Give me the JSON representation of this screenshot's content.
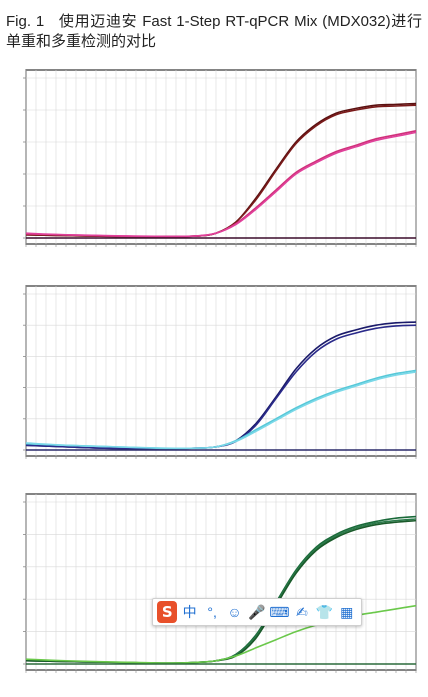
{
  "caption": {
    "fig_label": "Fig. 1",
    "text": "使用迈迪安 Fast 1-Step RT-qPCR Mix (MDX032)进行单重和多重检测的对比"
  },
  "ime_toolbar": {
    "items": [
      {
        "name": "sogou-logo-icon",
        "glyph": "S"
      },
      {
        "name": "chinese-mode-button",
        "glyph": "中"
      },
      {
        "name": "punctuation-button",
        "glyph": "°,"
      },
      {
        "name": "emoji-icon",
        "glyph": "☺"
      },
      {
        "name": "microphone-icon",
        "glyph": "🎤"
      },
      {
        "name": "keyboard-icon",
        "glyph": "⌨"
      },
      {
        "name": "handwriting-icon",
        "glyph": "✍"
      },
      {
        "name": "skin-shirt-icon",
        "glyph": "👕"
      },
      {
        "name": "toolbox-grid-icon",
        "glyph": "▦"
      }
    ]
  },
  "chart_data": [
    {
      "type": "line",
      "xlim": [
        1,
        40
      ],
      "ylim": [
        0,
        1
      ],
      "grid": true,
      "series": [
        {
          "color": "#5a1010",
          "x": [
            1,
            5,
            10,
            15,
            18,
            20,
            22,
            24,
            26,
            28,
            30,
            32,
            34,
            36,
            38,
            40
          ],
          "y": [
            0.02,
            0.015,
            0.01,
            0.01,
            0.012,
            0.03,
            0.1,
            0.25,
            0.43,
            0.6,
            0.71,
            0.78,
            0.81,
            0.83,
            0.835,
            0.84
          ]
        },
        {
          "color": "#7a1a1a",
          "x": [
            1,
            5,
            10,
            15,
            18,
            20,
            22,
            24,
            26,
            28,
            30,
            32,
            34,
            36,
            38,
            40
          ],
          "y": [
            0.02,
            0.015,
            0.01,
            0.01,
            0.012,
            0.03,
            0.1,
            0.24,
            0.42,
            0.59,
            0.7,
            0.77,
            0.8,
            0.82,
            0.825,
            0.83
          ]
        },
        {
          "color": "#d0307a",
          "x": [
            1,
            5,
            10,
            15,
            18,
            20,
            22,
            24,
            26,
            28,
            30,
            32,
            34,
            36,
            38,
            40
          ],
          "y": [
            0.025,
            0.02,
            0.012,
            0.01,
            0.012,
            0.03,
            0.09,
            0.19,
            0.3,
            0.41,
            0.48,
            0.54,
            0.58,
            0.62,
            0.645,
            0.67
          ]
        },
        {
          "color": "#e0409a",
          "x": [
            1,
            5,
            10,
            15,
            18,
            20,
            22,
            24,
            26,
            28,
            30,
            32,
            34,
            36,
            38,
            40
          ],
          "y": [
            0.03,
            0.02,
            0.014,
            0.01,
            0.013,
            0.03,
            0.085,
            0.18,
            0.29,
            0.4,
            0.47,
            0.53,
            0.57,
            0.61,
            0.635,
            0.66
          ]
        },
        {
          "color": "#3a0a2a",
          "x": [
            1,
            40
          ],
          "y": [
            0.0,
            0.0
          ]
        }
      ]
    },
    {
      "type": "line",
      "xlim": [
        1,
        40
      ],
      "ylim": [
        0,
        1
      ],
      "grid": true,
      "series": [
        {
          "color": "#1a1a6a",
          "x": [
            1,
            5,
            10,
            15,
            18,
            20,
            22,
            24,
            26,
            28,
            30,
            32,
            34,
            36,
            38,
            40
          ],
          "y": [
            0.03,
            0.02,
            0.01,
            0.01,
            0.012,
            0.02,
            0.06,
            0.17,
            0.34,
            0.52,
            0.65,
            0.73,
            0.77,
            0.8,
            0.815,
            0.82
          ]
        },
        {
          "color": "#2a2a8a",
          "x": [
            1,
            5,
            10,
            15,
            18,
            20,
            22,
            24,
            26,
            28,
            30,
            32,
            34,
            36,
            38,
            40
          ],
          "y": [
            0.03,
            0.02,
            0.01,
            0.01,
            0.012,
            0.02,
            0.055,
            0.16,
            0.33,
            0.5,
            0.63,
            0.71,
            0.75,
            0.78,
            0.795,
            0.8
          ]
        },
        {
          "color": "#56c8d8",
          "x": [
            1,
            5,
            10,
            15,
            18,
            20,
            22,
            24,
            26,
            28,
            30,
            32,
            34,
            36,
            38,
            40
          ],
          "y": [
            0.04,
            0.03,
            0.02,
            0.01,
            0.012,
            0.02,
            0.06,
            0.13,
            0.2,
            0.27,
            0.33,
            0.38,
            0.42,
            0.46,
            0.49,
            0.51
          ]
        },
        {
          "color": "#7ad8e8",
          "x": [
            1,
            5,
            10,
            15,
            18,
            20,
            22,
            24,
            26,
            28,
            30,
            32,
            34,
            36,
            38,
            40
          ],
          "y": [
            0.045,
            0.03,
            0.02,
            0.012,
            0.012,
            0.02,
            0.055,
            0.12,
            0.19,
            0.26,
            0.32,
            0.37,
            0.41,
            0.45,
            0.48,
            0.5
          ]
        },
        {
          "color": "#2a2a6a",
          "x": [
            1,
            40
          ],
          "y": [
            0.0,
            0.0
          ]
        }
      ]
    },
    {
      "type": "line",
      "xlim": [
        1,
        40
      ],
      "ylim": [
        0,
        1
      ],
      "grid": true,
      "series": [
        {
          "color": "#1a6a3a",
          "x": [
            1,
            5,
            10,
            15,
            18,
            20,
            22,
            24,
            26,
            28,
            30,
            32,
            34,
            36,
            38,
            40
          ],
          "y": [
            0.02,
            0.015,
            0.01,
            0.005,
            0.01,
            0.02,
            0.06,
            0.18,
            0.38,
            0.58,
            0.72,
            0.8,
            0.85,
            0.88,
            0.9,
            0.91
          ]
        },
        {
          "color": "#2a7a4a",
          "x": [
            1,
            5,
            10,
            15,
            18,
            20,
            22,
            24,
            26,
            28,
            30,
            32,
            34,
            36,
            38,
            40
          ],
          "y": [
            0.02,
            0.015,
            0.01,
            0.005,
            0.01,
            0.02,
            0.055,
            0.17,
            0.37,
            0.57,
            0.71,
            0.79,
            0.84,
            0.87,
            0.885,
            0.895
          ]
        },
        {
          "color": "#1a5a2a",
          "x": [
            1,
            5,
            10,
            15,
            18,
            20,
            22,
            24,
            26,
            28,
            30,
            32,
            34,
            36,
            38,
            40
          ],
          "y": [
            0.02,
            0.015,
            0.01,
            0.005,
            0.01,
            0.02,
            0.05,
            0.16,
            0.36,
            0.56,
            0.7,
            0.78,
            0.83,
            0.86,
            0.875,
            0.885
          ]
        },
        {
          "color": "#6ac84a",
          "x": [
            1,
            5,
            10,
            15,
            18,
            20,
            22,
            24,
            26,
            28,
            30,
            32,
            34,
            36,
            38,
            40
          ],
          "y": [
            0.03,
            0.02,
            0.012,
            0.006,
            0.01,
            0.02,
            0.05,
            0.1,
            0.15,
            0.2,
            0.24,
            0.27,
            0.3,
            0.32,
            0.34,
            0.36
          ]
        },
        {
          "color": "#2a6a3a",
          "x": [
            1,
            40
          ],
          "y": [
            0.0,
            0.0
          ]
        }
      ]
    }
  ]
}
